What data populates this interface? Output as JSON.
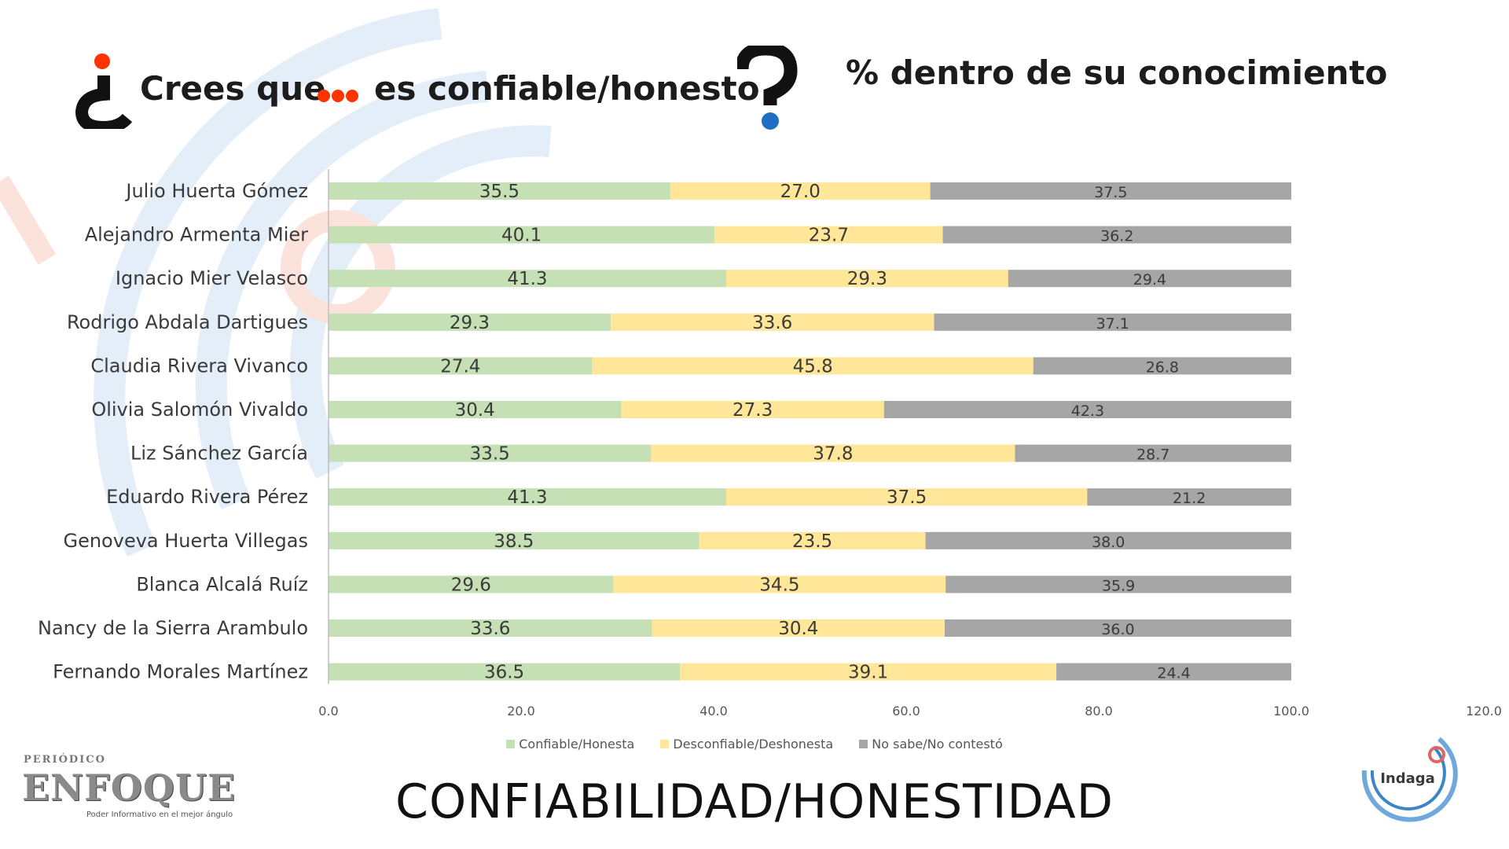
{
  "header": {
    "title_part1": "Crees que",
    "title_part2": "es confiable/honesto",
    "subtitle": "% dentro de su conocimiento"
  },
  "footer": {
    "title": "CONFIABILIDAD/HONESTIDAD"
  },
  "logos": {
    "enfoque_top": "PERIÓDICO",
    "enfoque_name": "ENFOQUE",
    "enfoque_tagline": "Poder Informativo en el mejor ángulo",
    "indaga_name": "Indaga"
  },
  "colors": {
    "confiable": "#c5e0b4",
    "desconfiable": "#ffe699",
    "nosabe": "#a6a6a6",
    "accent_red": "#ff3300",
    "accent_blue": "#1f6fc5"
  },
  "chart_data": {
    "type": "bar",
    "orientation": "horizontal",
    "stacked": true,
    "categories": [
      "Julio Huerta Gómez",
      "Alejandro Armenta Mier",
      "Ignacio Mier Velasco",
      "Rodrigo Abdala Dartigues",
      "Claudia Rivera Vivanco",
      "Olivia Salomón Vivaldo",
      "Liz Sánchez García",
      "Eduardo Rivera Pérez",
      "Genoveva Huerta Villegas",
      "Blanca Alcalá Ruíz",
      "Nancy de la Sierra Arambulo",
      "Fernando Morales Martínez"
    ],
    "series": [
      {
        "name": "Confiable/Honesta",
        "values": [
          35.5,
          40.1,
          41.3,
          29.3,
          27.4,
          30.4,
          33.5,
          41.3,
          38.5,
          29.6,
          33.6,
          36.5
        ]
      },
      {
        "name": "Desconfiable/Deshonesta",
        "values": [
          27.0,
          23.7,
          29.3,
          33.6,
          45.8,
          27.3,
          37.8,
          37.5,
          23.5,
          34.5,
          30.4,
          39.1
        ]
      },
      {
        "name": "No sabe/No contestó",
        "values": [
          37.5,
          36.2,
          29.4,
          37.1,
          26.8,
          42.3,
          28.7,
          21.2,
          38.0,
          35.9,
          36.0,
          24.4
        ]
      }
    ],
    "xlim": [
      0,
      120
    ],
    "xticks": [
      "0.0",
      "20.0",
      "40.0",
      "60.0",
      "80.0",
      "100.0",
      "120.0"
    ],
    "legend": "bottom",
    "grid": false
  }
}
